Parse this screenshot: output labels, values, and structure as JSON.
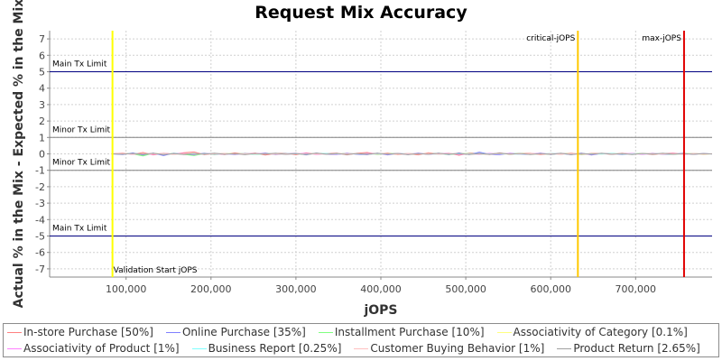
{
  "chart_data": {
    "type": "line",
    "title": "Request Mix Accuracy",
    "xlabel": "jOPS",
    "ylabel": "Actual % in the Mix - Expected % in the Mix",
    "xlim": [
      10000,
      790000
    ],
    "ylim": [
      -7.5,
      7.5
    ],
    "x_ticks": [
      100000,
      200000,
      300000,
      400000,
      500000,
      600000,
      700000
    ],
    "x_tick_labels": [
      "100,000",
      "200,000",
      "300,000",
      "400,000",
      "500,000",
      "600,000",
      "700,000"
    ],
    "y_ticks": [
      7,
      6,
      5,
      4,
      3,
      2,
      1,
      0,
      -1,
      -2,
      -3,
      -4,
      -5,
      -6,
      -7
    ],
    "y_tick_labels": [
      "7",
      "6",
      "5",
      "4",
      "3",
      "2",
      "1",
      "0",
      "-1",
      "-2",
      "-3",
      "-4",
      "-5",
      "-6",
      "-7"
    ],
    "grid": true,
    "legend_position": "bottom",
    "horizontal_lines": [
      {
        "label": "Main Tx Limit",
        "y": 5,
        "color": "#000080"
      },
      {
        "label": "Minor Tx Limit",
        "y": 1,
        "color": "#808080"
      },
      {
        "label": "Minor Tx Limit",
        "y": -1,
        "color": "#808080"
      },
      {
        "label": "Main Tx Limit",
        "y": -5,
        "color": "#000080"
      }
    ],
    "vertical_lines": [
      {
        "label": "Validation Start jOPS",
        "x": 84000,
        "color": "#ffff00"
      },
      {
        "label": "critical-jOPS",
        "x": 632000,
        "color": "#ffc800"
      },
      {
        "label": "max-jOPS",
        "x": 757000,
        "color": "#e00000"
      }
    ],
    "x": [
      84000,
      96000,
      108000,
      120000,
      132000,
      144000,
      156000,
      168000,
      180000,
      192000,
      204000,
      216000,
      228000,
      240000,
      252000,
      264000,
      276000,
      288000,
      300000,
      312000,
      324000,
      336000,
      348000,
      360000,
      372000,
      384000,
      396000,
      408000,
      420000,
      432000,
      444000,
      456000,
      468000,
      480000,
      492000,
      504000,
      516000,
      528000,
      540000,
      552000,
      564000,
      576000,
      588000,
      600000,
      612000,
      624000,
      636000,
      648000,
      660000,
      672000,
      684000,
      696000,
      708000,
      720000,
      732000,
      744000,
      756000,
      768000,
      780000,
      790000
    ],
    "series": [
      {
        "name": "In-store Purchase [50%]",
        "color": "#ff8080",
        "values": [
          0.0,
          0.05,
          -0.03,
          0.08,
          -0.06,
          0.04,
          -0.02,
          0.07,
          0.12,
          -0.05,
          0.03,
          -0.04,
          0.06,
          -0.02,
          0.05,
          -0.07,
          0.03,
          0.04,
          -0.05,
          0.06,
          -0.03,
          0.02,
          0.05,
          -0.06,
          0.04,
          0.08,
          -0.03,
          0.05,
          -0.04,
          0.03,
          -0.06,
          0.07,
          -0.02,
          0.04,
          -0.08,
          0.05,
          0.03,
          -0.04,
          0.06,
          -0.03,
          0.02,
          0.04,
          -0.05,
          0.03,
          -0.02,
          0.05,
          -0.04,
          0.03,
          0.02,
          -0.03,
          0.04,
          -0.02,
          0.03,
          -0.04,
          0.02,
          0.05,
          -0.03,
          0.02,
          -0.02,
          0.01
        ]
      },
      {
        "name": "Online Purchase [35%]",
        "color": "#8080ff",
        "values": [
          0.0,
          -0.04,
          0.06,
          -0.08,
          0.05,
          -0.1,
          0.04,
          -0.03,
          -0.06,
          0.05,
          -0.04,
          0.03,
          -0.05,
          0.04,
          -0.03,
          0.06,
          -0.05,
          0.02,
          0.04,
          -0.06,
          0.05,
          -0.03,
          -0.04,
          0.05,
          -0.03,
          -0.05,
          0.04,
          -0.06,
          0.03,
          -0.04,
          0.05,
          -0.03,
          0.04,
          -0.05,
          0.06,
          -0.04,
          0.1,
          -0.03,
          -0.05,
          0.04,
          -0.02,
          -0.03,
          0.05,
          -0.04,
          0.03,
          -0.05,
          0.05,
          -0.07,
          0.03,
          0.02,
          -0.04,
          0.03,
          -0.02,
          0.04,
          -0.03,
          -0.02,
          0.04,
          -0.03,
          0.02,
          -0.01
        ]
      },
      {
        "name": "Installment Purchase [10%]",
        "color": "#80ff80",
        "values": [
          0.0,
          0.02,
          -0.01,
          -0.12,
          0.03,
          -0.02,
          0.02,
          -0.03,
          -0.1,
          0.02,
          -0.02,
          0.03,
          -0.01,
          0.02,
          -0.03,
          0.01,
          0.02,
          -0.02,
          0.01,
          -0.03,
          0.02,
          0.01,
          -0.02,
          0.03,
          -0.01,
          0.02,
          -0.02,
          0.01,
          0.03,
          -0.02,
          0.01,
          -0.01,
          0.02,
          -0.03,
          0.01,
          0.02,
          -0.02,
          0.01,
          0.02,
          -0.01,
          0.03,
          -0.02,
          0.01,
          -0.02,
          0.02,
          0.01,
          -0.02,
          0.01,
          -0.01,
          0.02,
          -0.01,
          0.01,
          0.02,
          -0.01,
          0.01,
          -0.02,
          0.01,
          0.02,
          -0.01,
          0.0
        ]
      },
      {
        "name": "Associativity of Category [0.1%]",
        "color": "#ffff80",
        "values": [
          0.0,
          0.01,
          0.0,
          -0.01,
          0.01,
          0.0,
          -0.01,
          0.01,
          0.0,
          0.01,
          -0.01,
          0.0,
          0.01,
          0.0,
          -0.01,
          0.01,
          0.0,
          -0.01,
          0.01,
          0.0,
          0.01,
          -0.01,
          0.0,
          0.01,
          0.0,
          -0.01,
          0.01,
          0.0,
          -0.01,
          0.01,
          0.0,
          0.01,
          -0.01,
          0.0,
          0.01,
          0.0,
          -0.01,
          0.01,
          0.0,
          -0.01,
          0.01,
          0.0,
          0.01,
          -0.01,
          0.0,
          0.01,
          0.0,
          -0.01,
          0.01,
          0.0,
          -0.01,
          0.01,
          0.0,
          0.01,
          -0.01,
          0.0,
          0.01,
          0.0,
          -0.01,
          0.0
        ]
      },
      {
        "name": "Associativity of Product [1%]",
        "color": "#ff80ff",
        "values": [
          0.0,
          0.02,
          -0.02,
          0.01,
          -0.03,
          0.02,
          -0.01,
          0.03,
          -0.02,
          0.01,
          0.02,
          -0.03,
          0.01,
          -0.02,
          0.03,
          -0.01,
          0.02,
          -0.02,
          0.01,
          0.03,
          -0.02,
          0.01,
          -0.03,
          0.02,
          -0.01,
          0.02,
          0.01,
          -0.02,
          0.03,
          -0.01,
          0.02,
          -0.02,
          0.01,
          0.02,
          -0.03,
          0.01,
          -0.02,
          0.03,
          -0.01,
          0.02,
          -0.02,
          0.01,
          0.02,
          -0.01,
          0.03,
          -0.02,
          0.01,
          -0.02,
          0.02,
          -0.01,
          0.01,
          0.02,
          -0.02,
          0.01,
          -0.01,
          0.02,
          -0.02,
          0.01,
          0.0,
          0.0
        ]
      },
      {
        "name": "Business Report [0.25%]",
        "color": "#80ffff",
        "values": [
          0.0,
          -0.01,
          0.02,
          -0.01,
          0.01,
          -0.02,
          0.01,
          0.0,
          0.01,
          -0.01,
          0.02,
          -0.01,
          0.0,
          0.01,
          -0.02,
          0.01,
          -0.01,
          0.02,
          0.0,
          -0.01,
          0.01,
          0.02,
          -0.01,
          0.0,
          0.01,
          -0.02,
          0.01,
          -0.01,
          0.0,
          0.02,
          -0.01,
          0.01,
          -0.02,
          0.01,
          0.0,
          -0.01,
          0.02,
          -0.01,
          0.01,
          0.0,
          -0.02,
          0.01,
          -0.01,
          0.02,
          0.0,
          -0.01,
          0.01,
          0.0,
          -0.01,
          0.02,
          -0.01,
          0.0,
          0.01,
          -0.01,
          0.02,
          0.0,
          -0.01,
          0.01,
          0.0,
          0.0
        ]
      },
      {
        "name": "Customer Buying Behavior [1%]",
        "color": "#ffc0c0",
        "values": [
          0.0,
          0.03,
          -0.02,
          0.02,
          -0.01,
          0.03,
          -0.03,
          0.01,
          0.02,
          -0.02,
          0.01,
          0.03,
          -0.02,
          0.02,
          -0.01,
          0.02,
          -0.03,
          0.01,
          0.03,
          -0.02,
          0.01,
          -0.02,
          0.03,
          -0.01,
          0.02,
          -0.03,
          0.02,
          0.01,
          -0.02,
          0.03,
          -0.01,
          0.02,
          -0.02,
          0.01,
          0.03,
          -0.02,
          0.01,
          -0.03,
          0.02,
          0.01,
          -0.01,
          0.03,
          -0.02,
          0.01,
          -0.02,
          0.02,
          0.01,
          -0.02,
          0.03,
          -0.01,
          0.02,
          -0.02,
          0.01,
          0.02,
          -0.01,
          0.01,
          -0.02,
          0.02,
          0.0,
          0.0
        ]
      },
      {
        "name": "Product Return [2.65%]",
        "color": "#a0a0a0",
        "values": [
          0.0,
          -0.02,
          0.03,
          -0.03,
          0.04,
          -0.05,
          0.02,
          -0.04,
          0.03,
          -0.02,
          0.04,
          -0.03,
          0.02,
          -0.05,
          0.03,
          -0.02,
          0.04,
          -0.03,
          0.02,
          -0.04,
          0.05,
          -0.02,
          0.03,
          -0.04,
          0.02,
          -0.03,
          0.04,
          -0.02,
          0.03,
          -0.05,
          0.02,
          -0.03,
          0.04,
          -0.02,
          0.03,
          -0.04,
          0.02,
          -0.03,
          0.05,
          -0.02,
          0.03,
          -0.04,
          0.02,
          -0.03,
          0.04,
          -0.05,
          0.03,
          -0.02,
          0.04,
          -0.03,
          0.02,
          -0.04,
          0.03,
          -0.02,
          0.04,
          -0.03,
          0.02,
          -0.03,
          0.02,
          -0.01
        ]
      }
    ]
  }
}
